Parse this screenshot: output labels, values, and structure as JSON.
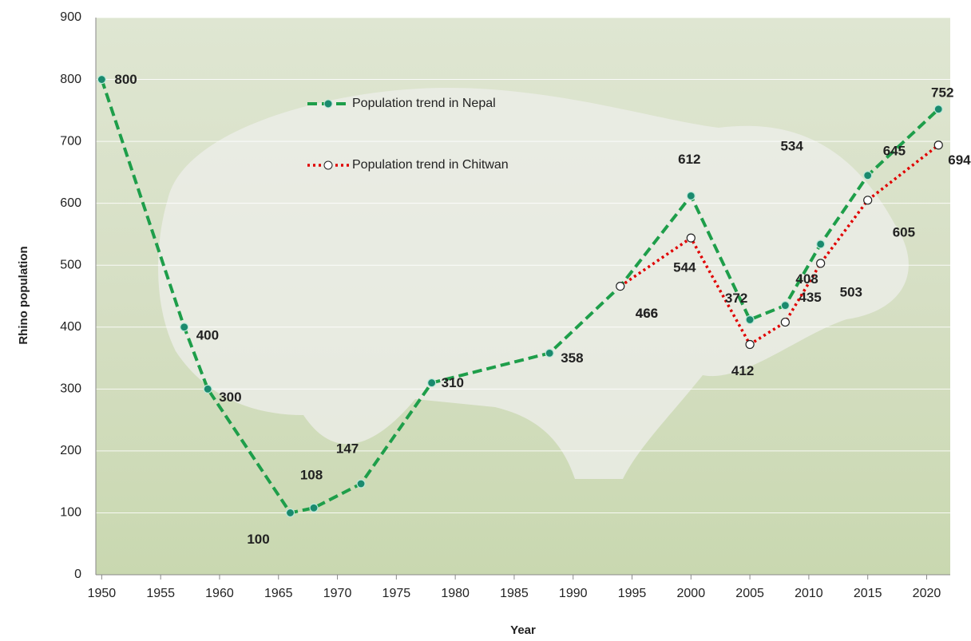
{
  "chart_data": {
    "type": "line",
    "x_label": "Year",
    "y_label": "Rhino population",
    "xlim": [
      1949.5,
      2022
    ],
    "xticks": [
      1950,
      1955,
      1960,
      1965,
      1970,
      1975,
      1980,
      1985,
      1990,
      1995,
      2000,
      2005,
      2010,
      2015,
      2020
    ],
    "ylim": [
      0,
      900
    ],
    "yticks": [
      0,
      100,
      200,
      300,
      400,
      500,
      600,
      700,
      800,
      900
    ],
    "grid": true,
    "series": [
      {
        "name": "Population trend in Nepal",
        "color": "#1e9e4a",
        "marker_color": "#1a8a6e",
        "line_style": "dashed",
        "x": [
          1950,
          1957,
          1959,
          1966,
          1968,
          1972,
          1978,
          1988,
          1994,
          2000,
          2005,
          2008,
          2011,
          2015,
          2021
        ],
        "values": [
          800,
          400,
          300,
          100,
          108,
          147,
          310,
          358,
          466,
          612,
          412,
          435,
          534,
          645,
          752
        ]
      },
      {
        "name": "Population trend in Chitwan",
        "color": "#e00000",
        "marker_color": "#ffffff",
        "line_style": "dotted",
        "x": [
          1994,
          2000,
          2005,
          2008,
          2011,
          2015,
          2021
        ],
        "values": [
          466,
          544,
          372,
          408,
          503,
          605,
          694
        ]
      }
    ]
  }
}
